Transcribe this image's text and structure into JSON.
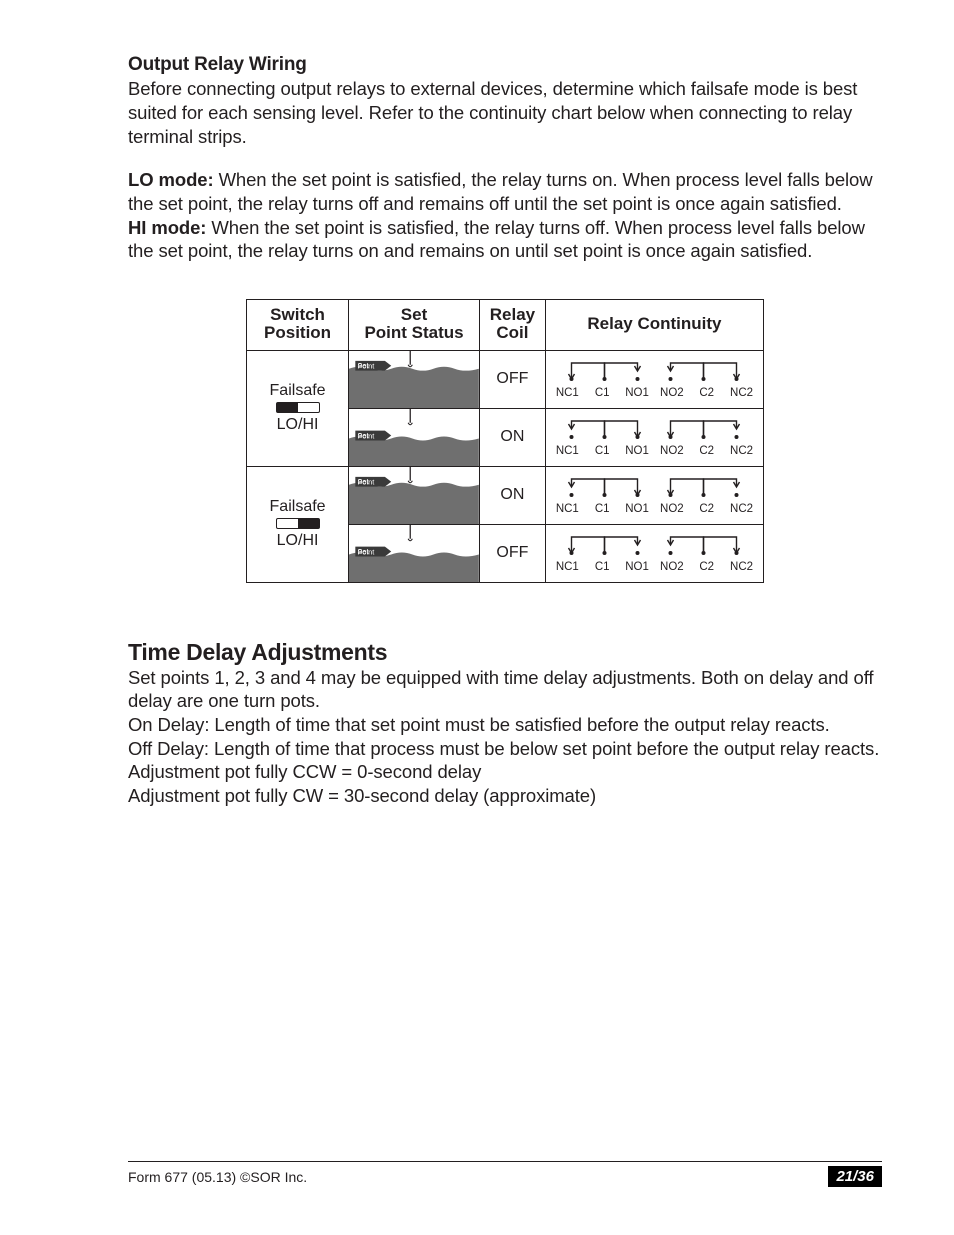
{
  "header": {
    "title": "Output Relay Wiring",
    "intro": "Before connecting output relays to external devices, determine which failsafe mode is best suited for each sensing level. Refer to the continuity chart below when connecting to relay terminal strips."
  },
  "modes": {
    "lo_label": "LO mode:",
    "lo_text": " When the set point is satisfied, the relay turns on. When process level falls below the set point, the relay turns off and remains off until the set point is once again satisfied.",
    "hi_label": "HI mode:",
    "hi_text": " When the set point is satisfied, the relay turns off. When process level falls below the set point, the relay turns on and remains on until set point is once again satisfied."
  },
  "table": {
    "headers": {
      "switch": "Switch Position",
      "setpoint": "Set Point Status",
      "coil": "Relay Coil",
      "continuity": "Relay Continuity"
    },
    "switch_label_top": "Failsafe",
    "switch_label_bottom": "LO/HI",
    "terminal_labels": [
      "NC1",
      "C1",
      "NO1",
      "NO2",
      "C2",
      "NC2"
    ],
    "setpoint_tag": "Set Point",
    "rows": [
      {
        "switch_pos": "left",
        "level": "high",
        "coil": "OFF",
        "pattern": "A"
      },
      {
        "switch_pos": "left",
        "level": "low",
        "coil": "ON",
        "pattern": "B"
      },
      {
        "switch_pos": "right",
        "level": "high",
        "coil": "ON",
        "pattern": "B"
      },
      {
        "switch_pos": "right",
        "level": "low",
        "coil": "OFF",
        "pattern": "A"
      }
    ],
    "colors": {
      "line": "#231f20",
      "water": "#6f6f6f",
      "tag_fill": "#3a3a3a",
      "tag_text": "#ffffff",
      "bg": "#ffffff"
    }
  },
  "timedelay": {
    "heading": "Time Delay Adjustments",
    "p1": "Set points 1, 2, 3 and 4 may be equipped with time delay adjustments. Both on delay and off delay are one turn pots.",
    "p2": "On Delay: Length of time that set point must be satisfied before the output relay reacts.",
    "p3": "Off Delay: Length of time that process must be below set point before the output relay reacts.",
    "p4": "Adjustment pot fully CCW = 0-second delay",
    "p5": "Adjustment pot fully CW = 30-second delay (approximate)"
  },
  "footer": {
    "left": "Form 677 (05.13) ©SOR Inc.",
    "page": "21/36"
  }
}
